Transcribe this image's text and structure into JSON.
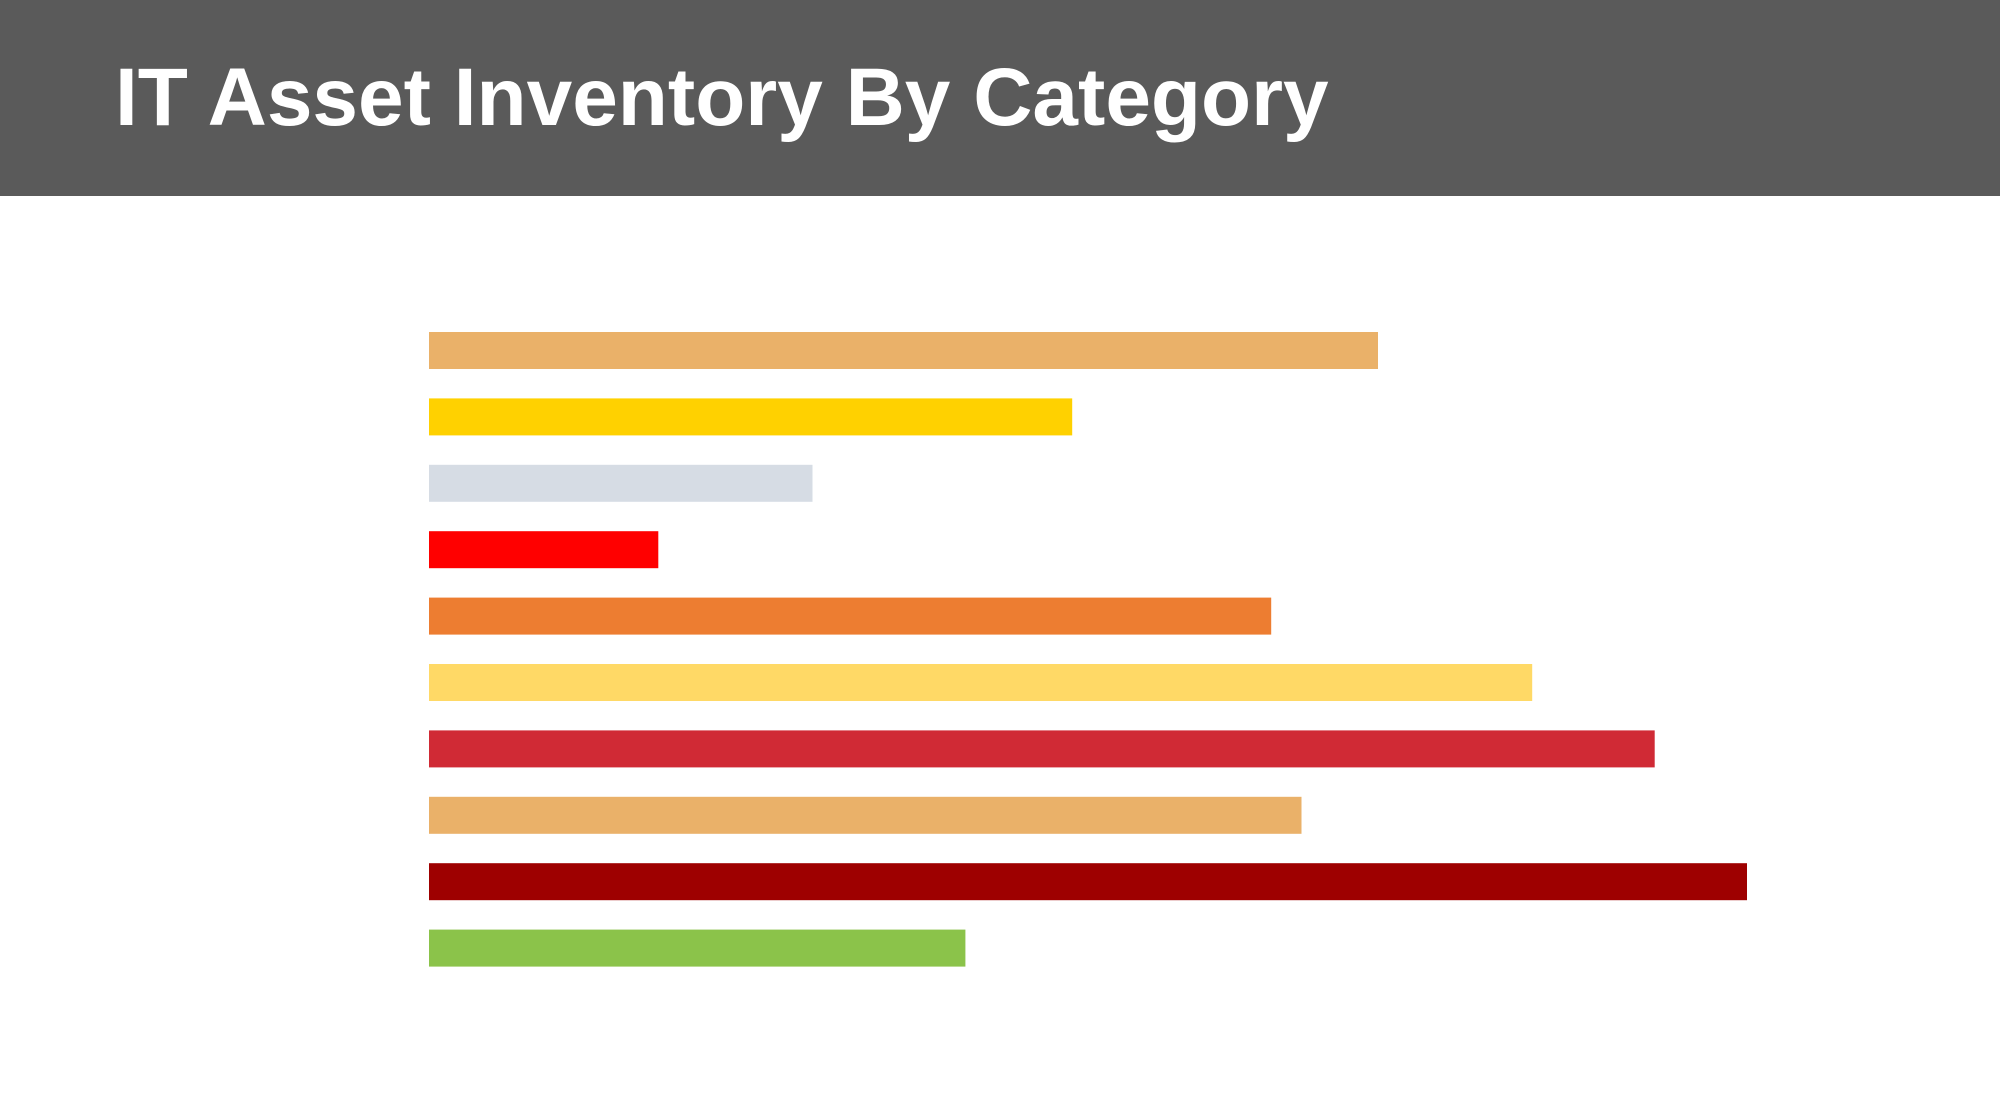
{
  "header": {
    "title": "IT Asset Inventory By Category",
    "background_color": "#5a5a5a",
    "title_color": "#ffffff"
  },
  "chart_data": {
    "type": "bar",
    "orientation": "horizontal",
    "title": "IT Asset Inventory By Category",
    "xlabel": "",
    "ylabel": "",
    "xlim": [
      0,
      100
    ],
    "grid": false,
    "axes_visible": false,
    "tick_labels_visible": false,
    "legend": "none",
    "values": [
      72,
      48.8,
      29.1,
      17.4,
      63.9,
      83.7,
      93,
      66.2,
      100,
      40.7
    ],
    "colors": [
      "#eab169",
      "#ffd100",
      "#d6dce4",
      "#ff0000",
      "#ed7d31",
      "#ffd966",
      "#d02a35",
      "#eab169",
      "#9e0000",
      "#8bc34a"
    ]
  }
}
